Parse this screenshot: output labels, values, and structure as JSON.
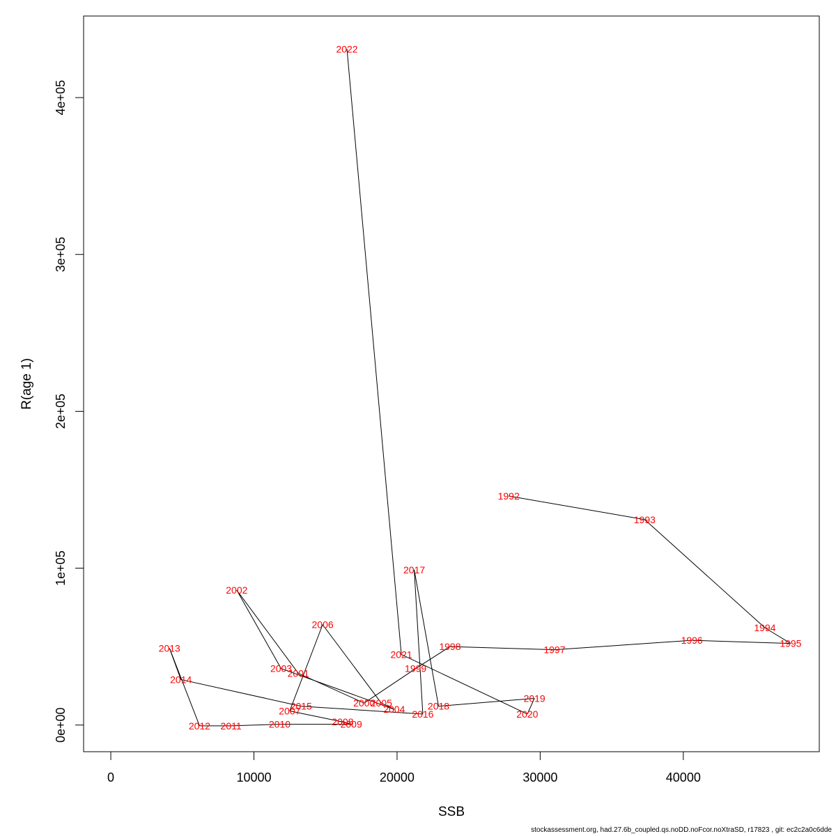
{
  "chart_data": {
    "type": "line",
    "xlabel": "SSB",
    "ylabel": "R(age 1)",
    "xlim": [
      -1900,
      49500
    ],
    "ylim": [
      -17000,
      452000
    ],
    "x_ticks": [
      {
        "value": 0,
        "label": "0"
      },
      {
        "value": 10000,
        "label": "10000"
      },
      {
        "value": 20000,
        "label": "20000"
      },
      {
        "value": 30000,
        "label": "30000"
      },
      {
        "value": 40000,
        "label": "40000"
      }
    ],
    "y_ticks": [
      {
        "value": 0,
        "label": "0e+00"
      },
      {
        "value": 100000,
        "label": "1e+05"
      },
      {
        "value": 200000,
        "label": "2e+05"
      },
      {
        "value": 300000,
        "label": "3e+05"
      },
      {
        "value": 400000,
        "label": "4e+05"
      }
    ],
    "points": [
      {
        "label": "1992",
        "x": 27800,
        "y": 146000
      },
      {
        "label": "1993",
        "x": 37300,
        "y": 131000
      },
      {
        "label": "1994",
        "x": 45700,
        "y": 62000
      },
      {
        "label": "1995",
        "x": 47500,
        "y": 52000
      },
      {
        "label": "1996",
        "x": 40600,
        "y": 54000
      },
      {
        "label": "1997",
        "x": 31000,
        "y": 48000
      },
      {
        "label": "1998",
        "x": 23700,
        "y": 50000
      },
      {
        "label": "1999",
        "x": 21300,
        "y": 36000
      },
      {
        "label": "2000",
        "x": 17700,
        "y": 14000
      },
      {
        "label": "2001",
        "x": 13100,
        "y": 33000
      },
      {
        "label": "2002",
        "x": 8800,
        "y": 86000
      },
      {
        "label": "2003",
        "x": 11900,
        "y": 36000
      },
      {
        "label": "2004",
        "x": 19800,
        "y": 10000
      },
      {
        "label": "2005",
        "x": 18900,
        "y": 14000
      },
      {
        "label": "2006",
        "x": 14800,
        "y": 64000
      },
      {
        "label": "2007",
        "x": 12500,
        "y": 9000
      },
      {
        "label": "2008",
        "x": 16200,
        "y": 2000
      },
      {
        "label": "2009",
        "x": 16800,
        "y": 500
      },
      {
        "label": "2010",
        "x": 11800,
        "y": 500
      },
      {
        "label": "2011",
        "x": 8400,
        "y": -500
      },
      {
        "label": "2012",
        "x": 6200,
        "y": -500
      },
      {
        "label": "2013",
        "x": 4100,
        "y": 49000
      },
      {
        "label": "2014",
        "x": 4900,
        "y": 29000
      },
      {
        "label": "2015",
        "x": 13300,
        "y": 12000
      },
      {
        "label": "2016",
        "x": 21800,
        "y": 7000
      },
      {
        "label": "2017",
        "x": 21200,
        "y": 99000
      },
      {
        "label": "2018",
        "x": 22900,
        "y": 12000
      },
      {
        "label": "2019",
        "x": 29600,
        "y": 17000
      },
      {
        "label": "2020",
        "x": 29100,
        "y": 7000
      },
      {
        "label": "2021",
        "x": 20300,
        "y": 45000
      },
      {
        "label": "2022",
        "x": 16500,
        "y": 431000
      }
    ]
  },
  "footer": "stockassessment.org, had.27.6b_coupled.qs.noDD.noFcor.noXtraSD, r17823 , git: ec2c2a0c6dde",
  "colors": {
    "point_label": "#ff0000",
    "line": "#000000",
    "axis": "#000000"
  }
}
